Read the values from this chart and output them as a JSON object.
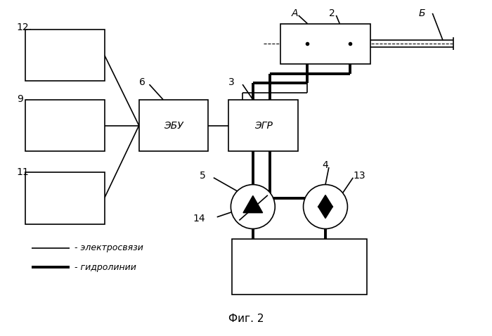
{
  "bg_color": "#ffffff",
  "line_color": "#000000",
  "thin_lw": 1.2,
  "thick_lw": 2.8,
  "fig_caption": "Фиг. 2",
  "ebu_text": "ЭБУ",
  "egr_text": "ЭГР"
}
